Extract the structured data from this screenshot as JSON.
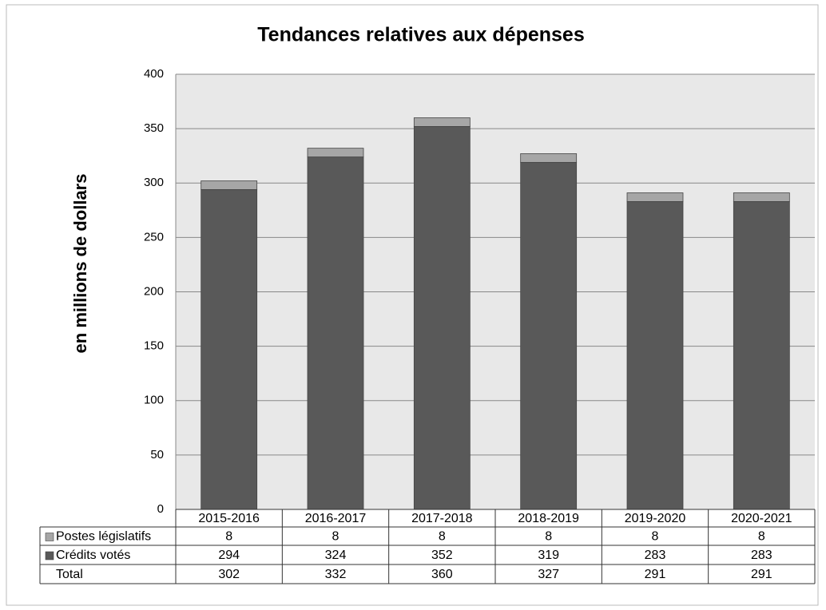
{
  "chart_data": {
    "type": "stacked_bar",
    "title": "Tendances relatives aux dépenses",
    "y_label": "en millions de dollars",
    "categories": [
      "2015-2016",
      "2016-2017",
      "2017-2018",
      "2018-2019",
      "2019-2020",
      "2020-2021"
    ],
    "series": [
      {
        "name": "Postes législatifs",
        "color": "#a6a6a6",
        "values": [
          8,
          8,
          8,
          8,
          8,
          8
        ]
      },
      {
        "name": "Crédits votés",
        "color": "#595959",
        "values": [
          294,
          324,
          352,
          319,
          283,
          283
        ]
      }
    ],
    "total": {
      "name": "Total",
      "values": [
        302,
        332,
        360,
        327,
        291,
        291
      ]
    },
    "ylim": [
      0,
      400
    ],
    "yticks": [
      0,
      50,
      100,
      150,
      200,
      250,
      300,
      350,
      400
    ],
    "grid": true
  }
}
